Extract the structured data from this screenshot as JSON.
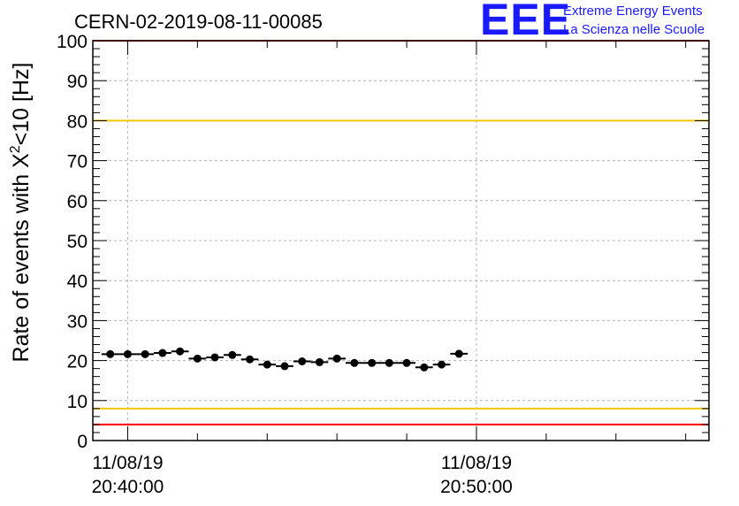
{
  "logo": {
    "mark": "EEE",
    "line1": "Extreme Energy Events",
    "line2": "La Scienza nelle Scuole"
  },
  "chart_data": {
    "type": "scatter",
    "title": "CERN-02-2019-08-11-00085",
    "ylabel_main": "Rate of events with X",
    "ylabel_sup": "2",
    "ylabel_tail": "<10 [Hz]",
    "xlabel": "",
    "ylim": [
      0,
      100
    ],
    "yticks": [
      0,
      10,
      20,
      30,
      40,
      50,
      60,
      70,
      80,
      90,
      100
    ],
    "xlim_seconds_from_first_label": [
      -60,
      1000
    ],
    "xticks": [
      {
        "date": "11/08/19",
        "time": "20:40:00",
        "t": 0
      },
      {
        "date": "11/08/19",
        "time": "20:50:00",
        "t": 600
      }
    ],
    "grid": true,
    "reference_lines": [
      {
        "y": 80,
        "color": "#f0c800"
      },
      {
        "y": 8,
        "color": "#f0c800"
      },
      {
        "y": 100,
        "color": "#ff0000"
      },
      {
        "y": 4,
        "color": "#ff0000"
      }
    ],
    "series": [
      {
        "marker_color": "#000000",
        "bin_width_seconds": 30,
        "points": [
          {
            "t": -30,
            "y": 21.6
          },
          {
            "t": 0,
            "y": 21.6
          },
          {
            "t": 30,
            "y": 21.6
          },
          {
            "t": 60,
            "y": 21.9
          },
          {
            "t": 90,
            "y": 22.3
          },
          {
            "t": 120,
            "y": 20.5
          },
          {
            "t": 150,
            "y": 20.8
          },
          {
            "t": 180,
            "y": 21.4
          },
          {
            "t": 210,
            "y": 20.3
          },
          {
            "t": 240,
            "y": 19.0
          },
          {
            "t": 270,
            "y": 18.6
          },
          {
            "t": 300,
            "y": 19.8
          },
          {
            "t": 330,
            "y": 19.6
          },
          {
            "t": 360,
            "y": 20.5
          },
          {
            "t": 390,
            "y": 19.4
          },
          {
            "t": 420,
            "y": 19.4
          },
          {
            "t": 450,
            "y": 19.4
          },
          {
            "t": 480,
            "y": 19.4
          },
          {
            "t": 510,
            "y": 18.3
          },
          {
            "t": 540,
            "y": 19.0
          },
          {
            "t": 570,
            "y": 21.7
          }
        ]
      }
    ]
  }
}
